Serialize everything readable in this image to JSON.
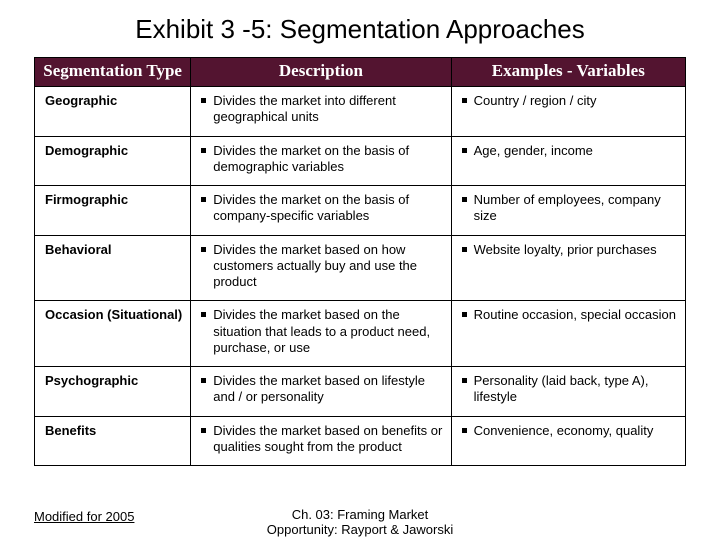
{
  "title": "Exhibit 3 -5: Segmentation Approaches",
  "headers": {
    "col1": "Segmentation Type",
    "col2": "Description",
    "col3": "Examples - Variables"
  },
  "rows": [
    {
      "type": "Geographic",
      "desc": "Divides the market into different geographical units",
      "ex": "Country / region / city"
    },
    {
      "type": "Demographic",
      "desc": "Divides the market on the basis of demographic variables",
      "ex": "Age, gender, income"
    },
    {
      "type": "Firmographic",
      "desc": "Divides the market on the basis of company-specific variables",
      "ex": "Number of employees, company size"
    },
    {
      "type": "Behavioral",
      "desc": "Divides the market based on how customers actually buy and use the product",
      "ex": "Website loyalty, prior purchases"
    },
    {
      "type": "Occasion (Situational)",
      "desc": "Divides the market based on the situation that leads to a product need, purchase, or use",
      "ex": "Routine occasion, special occasion"
    },
    {
      "type": "Psychographic",
      "desc": "Divides the market based on lifestyle and / or personality",
      "ex": "Personality (laid back, type A), lifestyle"
    },
    {
      "type": "Benefits",
      "desc": "Divides the market based on benefits or qualities sought from the product",
      "ex": "Convenience, economy, quality"
    }
  ],
  "footer": {
    "left": "Modified for 2005",
    "mid_line1": "Ch. 03: Framing Market",
    "mid_line2": "Opportunity: Rayport & Jaworski"
  },
  "colors": {
    "header_bg": "#531430",
    "header_fg": "#ffffff",
    "border": "#000000",
    "page_bg": "#ffffff",
    "text": "#000000"
  },
  "fonts": {
    "title_family": "Arial",
    "title_size_pt": 20,
    "header_family": "Times New Roman",
    "header_size_pt": 13,
    "body_family": "Arial",
    "body_size_pt": 10
  }
}
